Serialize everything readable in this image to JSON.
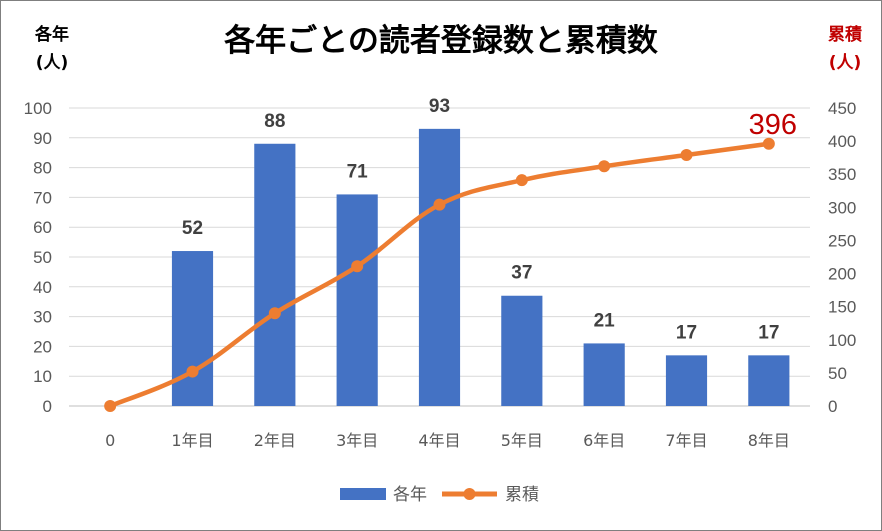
{
  "chart_data": {
    "type": "bar",
    "title": "各年ごとの読者登録数と累積数",
    "categories": [
      "0",
      "1年目",
      "2年目",
      "3年目",
      "4年目",
      "5年目",
      "6年目",
      "7年目",
      "8年目"
    ],
    "series": [
      {
        "name": "各年",
        "type": "bar",
        "axis": "left",
        "values": [
          null,
          52,
          88,
          71,
          93,
          37,
          21,
          17,
          17
        ],
        "color": "#4472C4",
        "data_labels": [
          "",
          "52",
          "88",
          "71",
          "93",
          "37",
          "21",
          "17",
          "17"
        ]
      },
      {
        "name": "累積",
        "type": "line",
        "axis": "right",
        "values": [
          0,
          52,
          140,
          211,
          304,
          341,
          362,
          379,
          396
        ],
        "color": "#ED7D31",
        "final_label": "396",
        "final_label_color": "#C00000"
      }
    ],
    "left_axis": {
      "label_line1": "各年",
      "label_line2": "(人)",
      "ylim": [
        0,
        100
      ],
      "ticks": [
        "0",
        "10",
        "20",
        "30",
        "40",
        "50",
        "60",
        "70",
        "80",
        "90",
        "100"
      ],
      "color": "#000000"
    },
    "right_axis": {
      "label_line1": "累積",
      "label_line2": "(人)",
      "ylim": [
        0,
        450
      ],
      "ticks": [
        "0",
        "50",
        "100",
        "150",
        "200",
        "250",
        "300",
        "350",
        "400",
        "450"
      ],
      "color": "#C00000"
    },
    "grid": true,
    "legend": "bottom"
  }
}
